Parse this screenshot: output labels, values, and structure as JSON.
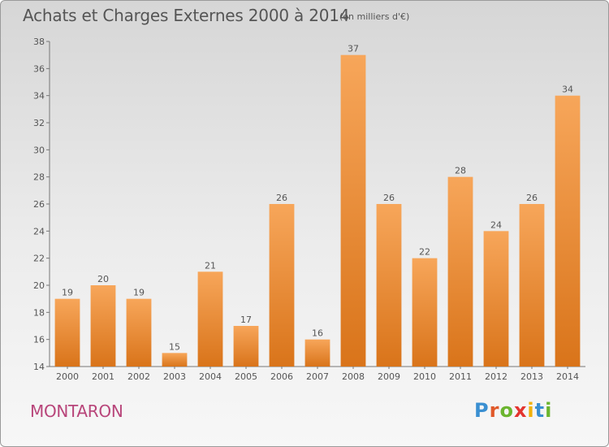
{
  "title": "Achats et Charges Externes 2000 à 2014",
  "subtitle": "(en milliers d'€)",
  "place": "MONTARON",
  "logo": {
    "letters": [
      "P",
      "r",
      "o",
      "x",
      "i",
      "t",
      "i"
    ],
    "colors": [
      "#3a8fd1",
      "#e0592a",
      "#6bb52f",
      "#e3342f",
      "#f1b10b",
      "#3a8fd1",
      "#6bb52f"
    ]
  },
  "colors": {
    "bar_top": "#f7a65a",
    "bar_bottom": "#d9741a",
    "text": "#555555"
  },
  "chart_data": {
    "type": "bar",
    "title": "Achats et Charges Externes 2000 à 2014",
    "subtitle": "(en milliers d'€)",
    "xlabel": "",
    "ylabel": "",
    "categories": [
      "2000",
      "2001",
      "2002",
      "2003",
      "2004",
      "2005",
      "2006",
      "2007",
      "2008",
      "2009",
      "2010",
      "2011",
      "2012",
      "2013",
      "2014"
    ],
    "values": [
      19,
      20,
      19,
      15,
      21,
      17,
      26,
      16,
      37,
      26,
      22,
      28,
      24,
      26,
      34
    ],
    "data_labels": [
      "19",
      "20",
      "19",
      "15",
      "21",
      "17",
      "26",
      "16",
      "37",
      "26",
      "22",
      "28",
      "24",
      "26",
      "34"
    ],
    "yticks": [
      "14",
      "16",
      "18",
      "20",
      "22",
      "24",
      "26",
      "28",
      "30",
      "32",
      "34",
      "36",
      "38"
    ],
    "ylim": [
      14,
      38
    ],
    "grid": false
  }
}
